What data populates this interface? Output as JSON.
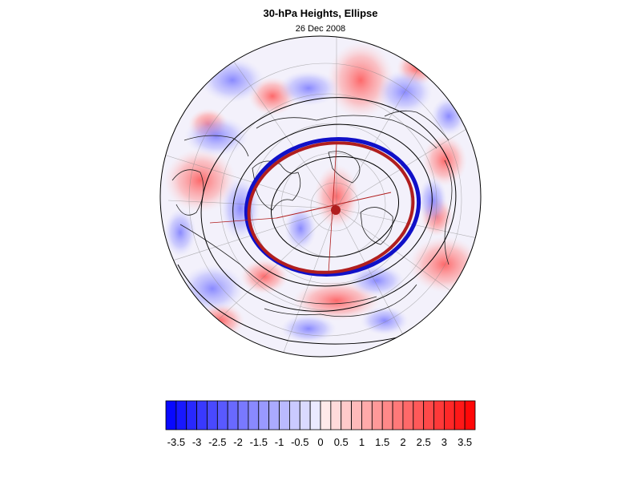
{
  "figure": {
    "title": "30-hPa Heights, Ellipse",
    "subtitle": "26 Dec 2008"
  },
  "colorbar": {
    "min": -3.75,
    "max": 3.75,
    "step": 0.25,
    "labels": [
      "-3.5",
      "-3",
      "-2.5",
      "-2",
      "-1.5",
      "-1",
      "-0.5",
      "0",
      "0.5",
      "1",
      "1.5",
      "2",
      "2.5",
      "3",
      "3.5"
    ],
    "color_negative_end": "#0000ff",
    "color_positive_end": "#ff0000",
    "color_center": "#ffffff"
  },
  "map": {
    "projection": "polar-stereographic-north",
    "ellipse_colors": {
      "observed": "#1010c8",
      "fitted": "#b01e1e",
      "vortex_center": "#b01e1e"
    },
    "contour_color": "#000000"
  }
}
